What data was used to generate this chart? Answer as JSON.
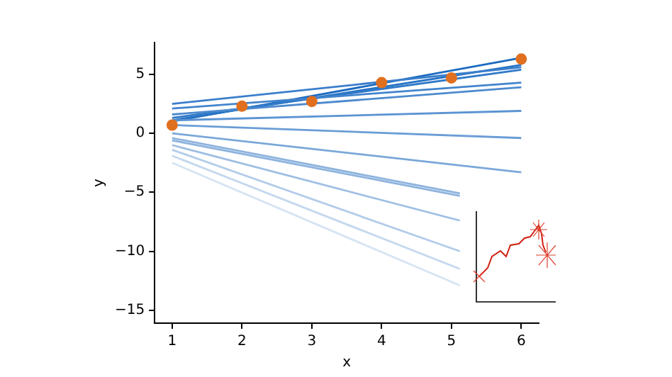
{
  "chart_data": {
    "type": "line",
    "xlabel": "x",
    "ylabel": "y",
    "xlim": [
      0.75,
      6.25
    ],
    "ylim": [
      -16.1,
      7.7
    ],
    "xticks": [
      1,
      2,
      3,
      4,
      5,
      6
    ],
    "yticks": [
      {
        "value": -15,
        "label": "−15"
      },
      {
        "value": -10,
        "label": "−10"
      },
      {
        "value": -5,
        "label": "−5"
      },
      0,
      5
    ],
    "grid": false,
    "legend": false,
    "marker": "none",
    "line_style": "solid",
    "series": [
      {
        "color": "#d6e4f3",
        "x": [
          1,
          5.12
        ],
        "values": [
          -2.5,
          -12.9
        ]
      },
      {
        "color": "#c4d8ee",
        "x": [
          1,
          5.12
        ],
        "values": [
          -1.9,
          -11.5
        ]
      },
      {
        "color": "#b2cce9",
        "x": [
          1,
          5.12
        ],
        "values": [
          -1.4,
          -10.0
        ]
      },
      {
        "color": "#9fbfe3",
        "x": [
          1,
          5.12
        ],
        "values": [
          -1.0,
          -7.4
        ]
      },
      {
        "color": "#8db3de",
        "x": [
          1,
          5.12
        ],
        "values": [
          -0.6,
          -5.3
        ]
      },
      {
        "color": "#8db3de",
        "x": [
          1,
          5.12
        ],
        "values": [
          -0.4,
          -5.1
        ]
      },
      {
        "color": "#7aa7da",
        "x": [
          1,
          6
        ],
        "values": [
          0.0,
          -3.3
        ]
      },
      {
        "color": "#6a9dd6",
        "x": [
          1,
          6
        ],
        "values": [
          0.7,
          -0.4
        ]
      },
      {
        "color": "#5b93d2",
        "x": [
          1,
          6
        ],
        "values": [
          1.1,
          1.9
        ]
      },
      {
        "color": "#4d8acf",
        "x": [
          1,
          6
        ],
        "values": [
          1.6,
          3.9
        ]
      },
      {
        "color": "#4384cd",
        "x": [
          1,
          6
        ],
        "values": [
          2.1,
          4.3
        ]
      },
      {
        "color": "#3a7ecb",
        "x": [
          1,
          6
        ],
        "values": [
          2.5,
          5.6
        ]
      },
      {
        "color": "#3079c8",
        "x": [
          1,
          6
        ],
        "values": [
          1.3,
          5.4
        ]
      },
      {
        "color": "#2773c5",
        "x": [
          1,
          6
        ],
        "values": [
          1.1,
          5.8
        ]
      },
      {
        "color": "#1b6ac0",
        "x": [
          1,
          6
        ],
        "values": [
          1.0,
          6.4
        ]
      },
      {
        "type": "scatter",
        "color": "#e0701f",
        "marker": "circle",
        "x": [
          1,
          2,
          3,
          4,
          5,
          6
        ],
        "values": [
          0.7,
          2.3,
          2.7,
          4.3,
          4.7,
          6.3
        ]
      }
    ]
  }
}
